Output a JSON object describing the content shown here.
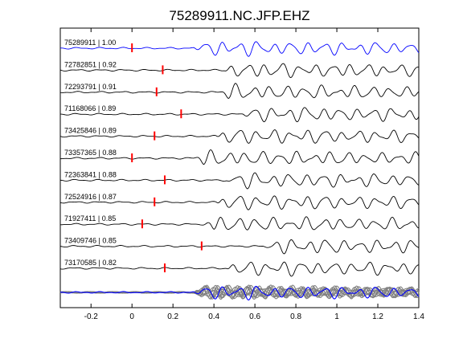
{
  "chart_data": {
    "type": "line",
    "title": "75289911.NC.JFP.EHZ",
    "xlabel": "",
    "ylabel": "",
    "xlim": [
      -0.35,
      1.4
    ],
    "xticks": [
      -0.2,
      0,
      0.2,
      0.4,
      0.6,
      0.8,
      1,
      1.2,
      1.4
    ],
    "xtick_labels": [
      "-0.2",
      "0",
      "0.2",
      "0.4",
      "0.6",
      "0.8",
      "1",
      "1.2",
      "1.4"
    ],
    "grid": false,
    "legend": "none",
    "colors": {
      "reference_trace": "#0000ff",
      "traces": "#000000",
      "pick_marker": "#ff0000",
      "stack_background": "#808080",
      "stack_reference": "#0000ff"
    },
    "series": [
      {
        "name": "75289911 | 1.00",
        "pick_time": 0.0,
        "reference": true
      },
      {
        "name": "72782851 | 0.92",
        "pick_time": 0.15
      },
      {
        "name": "72293791 | 0.91",
        "pick_time": 0.12
      },
      {
        "name": "71168066 | 0.89",
        "pick_time": 0.24
      },
      {
        "name": "73425846 | 0.89",
        "pick_time": 0.11
      },
      {
        "name": "73357365 | 0.88",
        "pick_time": 0.0
      },
      {
        "name": "72363841 | 0.88",
        "pick_time": 0.16
      },
      {
        "name": "72524916 | 0.87",
        "pick_time": 0.11
      },
      {
        "name": "71927411 | 0.85",
        "pick_time": 0.05
      },
      {
        "name": "73409746 | 0.85",
        "pick_time": 0.34
      },
      {
        "name": "73170585 | 0.82",
        "pick_time": 0.16
      }
    ],
    "stack": {
      "trace_count": 11
    }
  }
}
